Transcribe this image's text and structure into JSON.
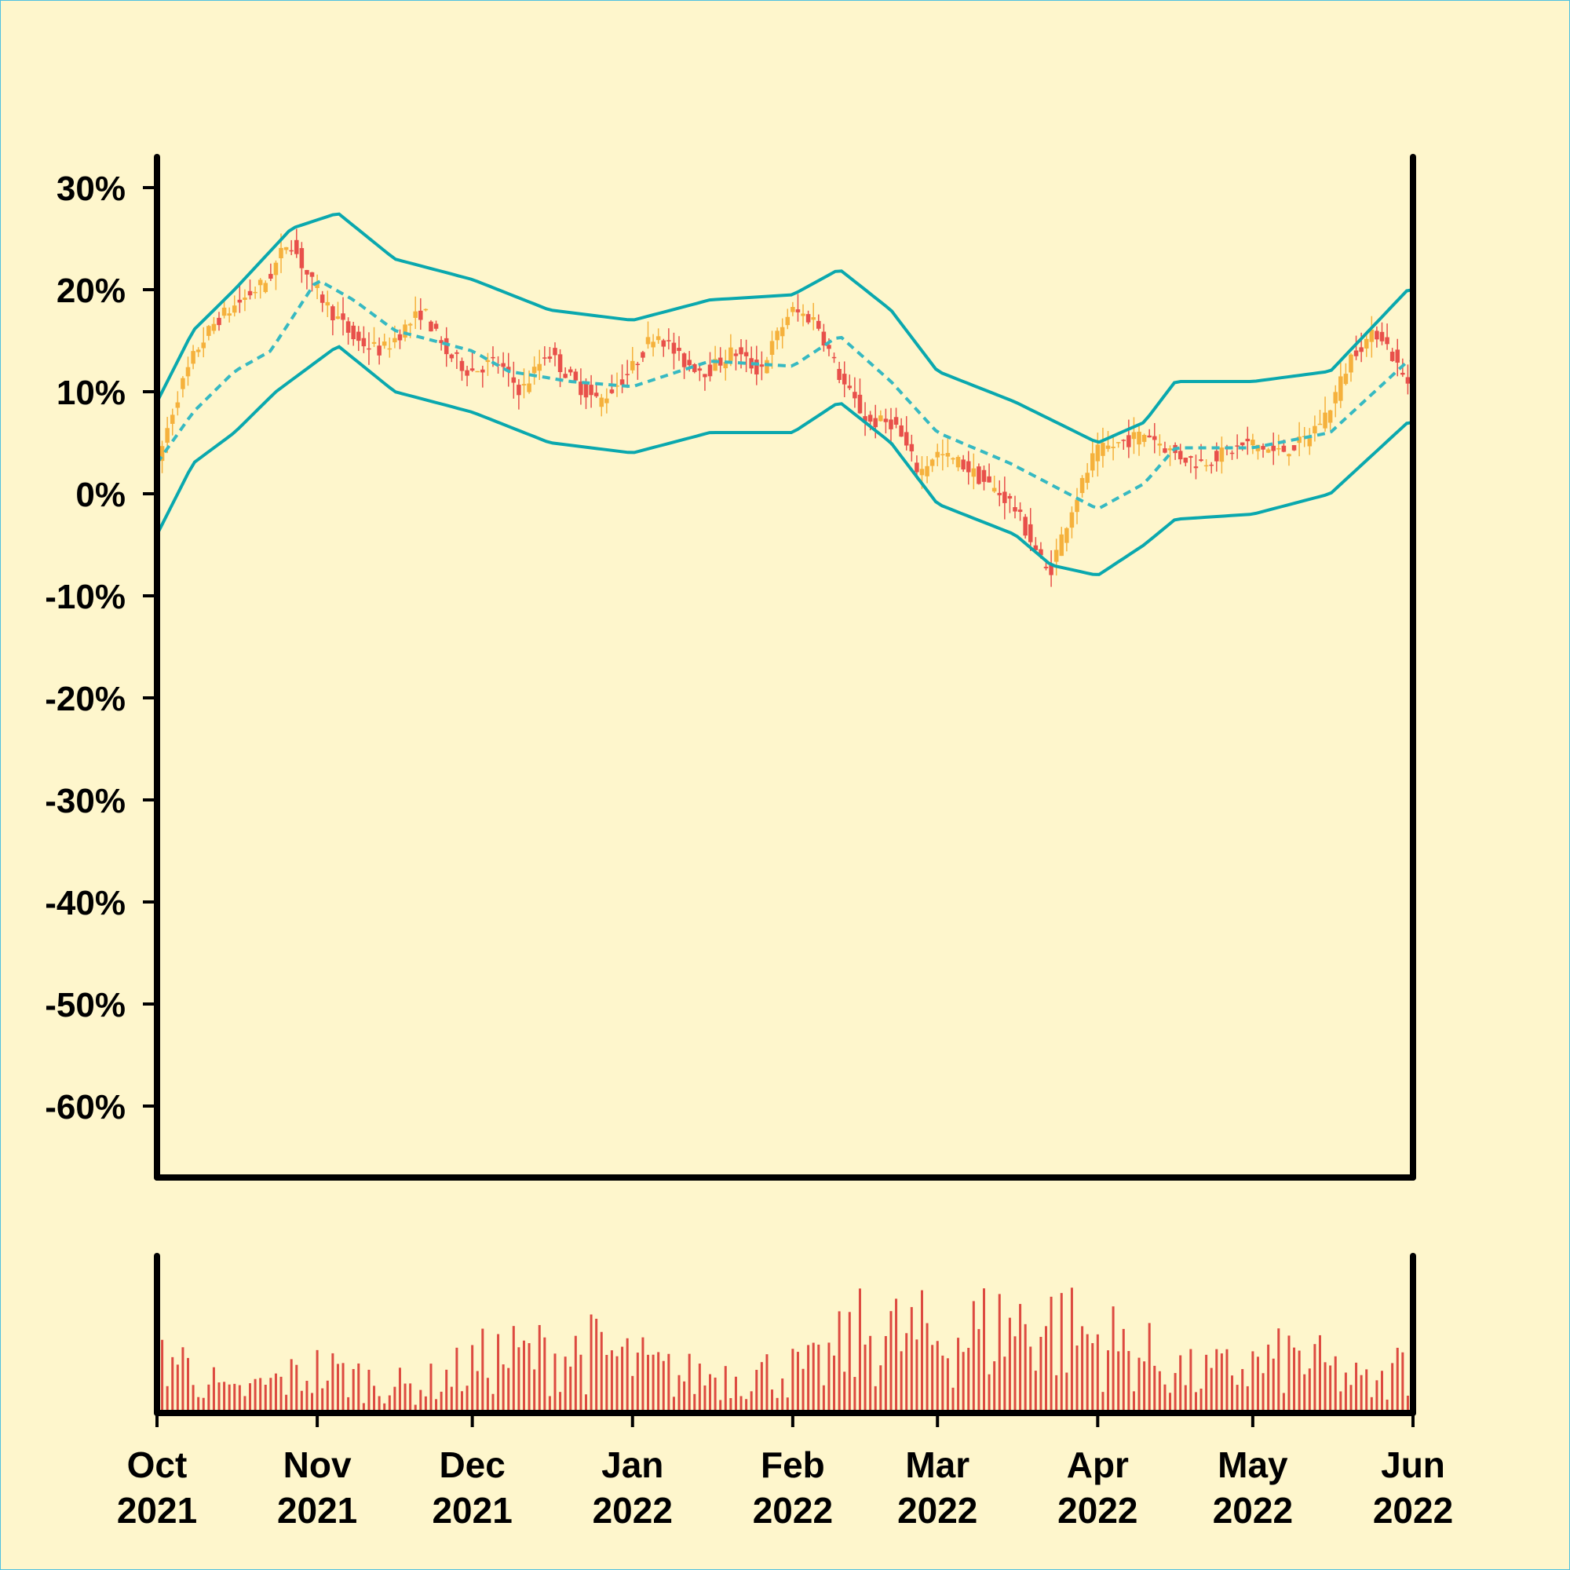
{
  "chart_data": {
    "type": "candlestick",
    "y_unit": "percent",
    "ylim": [
      -67,
      33
    ],
    "y_ticks": [
      "30%",
      "20%",
      "10%",
      "0%",
      "-10%",
      "-20%",
      "-30%",
      "-40%",
      "-50%",
      "-60%"
    ],
    "y_tick_values": [
      30,
      20,
      10,
      0,
      -10,
      -20,
      -30,
      -40,
      -50,
      -60
    ],
    "x_range": [
      "2021-10-01",
      "2022-06-01"
    ],
    "x_ticks": [
      {
        "month": "Oct",
        "year": "2021",
        "date": "2021-10-01"
      },
      {
        "month": "Nov",
        "year": "2021",
        "date": "2021-11-01"
      },
      {
        "month": "Dec",
        "year": "2021",
        "date": "2021-12-01"
      },
      {
        "month": "Jan",
        "year": "2022",
        "date": "2022-01-01"
      },
      {
        "month": "Feb",
        "year": "2022",
        "date": "2022-02-01"
      },
      {
        "month": "Mar",
        "year": "2022",
        "date": "2022-03-01"
      },
      {
        "month": "Apr",
        "year": "2022",
        "date": "2022-04-01"
      },
      {
        "month": "May",
        "year": "2022",
        "date": "2022-05-01"
      },
      {
        "month": "Jun",
        "year": "2022",
        "date": "2022-06-01"
      }
    ],
    "price_keypoints": [
      [
        "2021-10-01",
        2
      ],
      [
        "2021-10-05",
        9
      ],
      [
        "2021-10-09",
        14
      ],
      [
        "2021-10-13",
        17
      ],
      [
        "2021-10-18",
        19
      ],
      [
        "2021-10-23",
        21
      ],
      [
        "2021-10-27",
        25
      ],
      [
        "2021-10-31",
        21
      ],
      [
        "2021-11-04",
        18
      ],
      [
        "2021-11-09",
        15
      ],
      [
        "2021-11-14",
        14
      ],
      [
        "2021-11-18",
        16
      ],
      [
        "2021-11-22",
        18
      ],
      [
        "2021-11-26",
        14
      ],
      [
        "2021-12-01",
        12
      ],
      [
        "2021-12-06",
        13
      ],
      [
        "2021-12-11",
        10
      ],
      [
        "2021-12-16",
        14
      ],
      [
        "2021-12-21",
        11
      ],
      [
        "2021-12-26",
        9
      ],
      [
        "2022-01-01",
        12
      ],
      [
        "2022-01-06",
        16
      ],
      [
        "2022-01-11",
        13
      ],
      [
        "2022-01-16",
        12
      ],
      [
        "2022-01-21",
        14
      ],
      [
        "2022-01-26",
        12
      ],
      [
        "2022-02-01",
        18
      ],
      [
        "2022-02-06",
        17
      ],
      [
        "2022-02-11",
        11
      ],
      [
        "2022-02-16",
        7
      ],
      [
        "2022-02-21",
        7
      ],
      [
        "2022-02-26",
        2
      ],
      [
        "2022-03-01",
        4
      ],
      [
        "2022-03-06",
        3
      ],
      [
        "2022-03-11",
        1
      ],
      [
        "2022-03-16",
        -1
      ],
      [
        "2022-03-21",
        -6
      ],
      [
        "2022-03-23",
        -8
      ],
      [
        "2022-03-27",
        -2
      ],
      [
        "2022-04-01",
        4
      ],
      [
        "2022-04-06",
        5
      ],
      [
        "2022-04-11",
        6
      ],
      [
        "2022-04-16",
        4
      ],
      [
        "2022-04-21",
        3
      ],
      [
        "2022-04-26",
        4
      ],
      [
        "2022-05-01",
        5
      ],
      [
        "2022-05-06",
        4
      ],
      [
        "2022-05-11",
        5
      ],
      [
        "2022-05-16",
        8
      ],
      [
        "2022-05-21",
        14
      ],
      [
        "2022-05-26",
        16
      ],
      [
        "2022-05-31",
        11
      ]
    ],
    "bollinger": {
      "middle": [
        [
          "2021-10-01",
          3
        ],
        [
          "2021-10-08",
          8
        ],
        [
          "2021-10-16",
          12
        ],
        [
          "2021-10-23",
          14
        ],
        [
          "2021-11-01",
          21
        ],
        [
          "2021-11-08",
          19
        ],
        [
          "2021-11-16",
          16
        ],
        [
          "2021-12-01",
          14
        ],
        [
          "2021-12-08",
          12
        ],
        [
          "2021-12-20",
          11
        ],
        [
          "2022-01-01",
          10.5
        ],
        [
          "2022-01-16",
          13
        ],
        [
          "2022-02-01",
          12.5
        ],
        [
          "2022-02-10",
          15.5
        ],
        [
          "2022-02-20",
          11
        ],
        [
          "2022-03-01",
          6
        ],
        [
          "2022-03-15",
          3
        ],
        [
          "2022-04-01",
          -1.5
        ],
        [
          "2022-04-10",
          1
        ],
        [
          "2022-04-16",
          4.5
        ],
        [
          "2022-05-01",
          4.5
        ],
        [
          "2022-05-16",
          6
        ],
        [
          "2022-05-31",
          13
        ]
      ],
      "upper": [
        [
          "2021-10-01",
          9
        ],
        [
          "2021-10-08",
          16
        ],
        [
          "2021-10-16",
          20
        ],
        [
          "2021-10-27",
          26
        ],
        [
          "2021-11-05",
          27.5
        ],
        [
          "2021-11-16",
          23
        ],
        [
          "2021-12-01",
          21
        ],
        [
          "2021-12-16",
          18
        ],
        [
          "2022-01-01",
          17
        ],
        [
          "2022-01-16",
          19
        ],
        [
          "2022-02-01",
          19.5
        ],
        [
          "2022-02-10",
          22
        ],
        [
          "2022-02-20",
          18
        ],
        [
          "2022-03-01",
          12
        ],
        [
          "2022-03-16",
          9
        ],
        [
          "2022-04-01",
          5
        ],
        [
          "2022-04-10",
          7
        ],
        [
          "2022-04-16",
          11
        ],
        [
          "2022-05-01",
          11
        ],
        [
          "2022-05-16",
          12
        ],
        [
          "2022-05-31",
          20
        ]
      ],
      "lower": [
        [
          "2021-10-01",
          -4
        ],
        [
          "2021-10-08",
          3
        ],
        [
          "2021-10-16",
          6
        ],
        [
          "2021-10-24",
          10
        ],
        [
          "2021-11-05",
          14.5
        ],
        [
          "2021-11-16",
          10
        ],
        [
          "2021-12-01",
          8
        ],
        [
          "2021-12-16",
          5
        ],
        [
          "2022-01-01",
          4
        ],
        [
          "2022-01-16",
          6
        ],
        [
          "2022-02-01",
          6
        ],
        [
          "2022-02-10",
          9
        ],
        [
          "2022-02-20",
          5
        ],
        [
          "2022-03-01",
          -1
        ],
        [
          "2022-03-16",
          -4
        ],
        [
          "2022-03-23",
          -7
        ],
        [
          "2022-04-01",
          -8
        ],
        [
          "2022-04-10",
          -5
        ],
        [
          "2022-04-16",
          -2.5
        ],
        [
          "2022-05-01",
          -2
        ],
        [
          "2022-05-16",
          0
        ],
        [
          "2022-05-31",
          7
        ]
      ]
    },
    "volume": {
      "keypoints": [
        [
          "2021-10-01",
          0.55
        ],
        [
          "2021-10-15",
          0.15
        ],
        [
          "2021-11-01",
          0.35
        ],
        [
          "2021-11-20",
          0.2
        ],
        [
          "2021-12-05",
          0.45
        ],
        [
          "2021-12-25",
          0.5
        ],
        [
          "2022-01-10",
          0.3
        ],
        [
          "2022-02-05",
          0.35
        ],
        [
          "2022-02-15",
          0.65
        ],
        [
          "2022-03-01",
          0.6
        ],
        [
          "2022-03-20",
          0.75
        ],
        [
          "2022-04-05",
          0.55
        ],
        [
          "2022-04-20",
          0.3
        ],
        [
          "2022-05-10",
          0.45
        ],
        [
          "2022-05-25",
          0.2
        ],
        [
          "2022-05-31",
          0.45
        ]
      ]
    },
    "colors": {
      "background": "#fef6cc",
      "candle_up": "#f5b13c",
      "candle_down": "#e8504a",
      "band": "#0aa8ae",
      "middle_band": "#36b9c2",
      "volume": "#dd4a40",
      "axis": "#000000"
    }
  }
}
